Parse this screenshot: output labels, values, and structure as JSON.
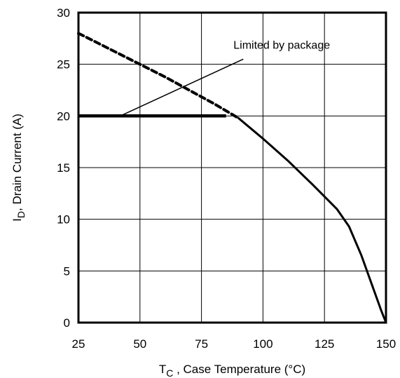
{
  "chart_data": {
    "type": "line",
    "title": "",
    "xlabel": {
      "main": "T",
      "sub": "C",
      "rest": " , Case Temperature (°C)"
    },
    "ylabel": {
      "main": "I",
      "sub": "D",
      "rest": ",  Drain Current (A)"
    },
    "xlim": [
      25,
      150
    ],
    "ylim": [
      0,
      30
    ],
    "x_ticks": [
      25,
      50,
      75,
      100,
      125,
      150
    ],
    "y_ticks": [
      0,
      5,
      10,
      15,
      20,
      25,
      30
    ],
    "grid": true,
    "series": [
      {
        "style": "dashed",
        "x": [
          25,
          30,
          40,
          50,
          60,
          70,
          80,
          85,
          90
        ],
        "y": [
          28.0,
          27.4,
          26.2,
          25.0,
          23.8,
          22.5,
          21.2,
          20.5,
          19.8
        ]
      },
      {
        "style": "solid",
        "x": [
          25,
          85
        ],
        "y": [
          20.0,
          20.0
        ]
      },
      {
        "style": "solid-thin",
        "x": [
          90,
          100,
          110,
          120,
          130,
          135,
          140,
          145,
          148,
          150
        ],
        "y": [
          19.8,
          17.8,
          15.7,
          13.4,
          11.0,
          9.3,
          6.5,
          3.2,
          1.2,
          0
        ]
      }
    ],
    "annotations": [
      {
        "text": "Limited by package",
        "at_x": 88,
        "at_y": 26.5,
        "arrow_from": [
          92,
          25.5
        ],
        "arrow_to": [
          42,
          20
        ]
      }
    ]
  }
}
